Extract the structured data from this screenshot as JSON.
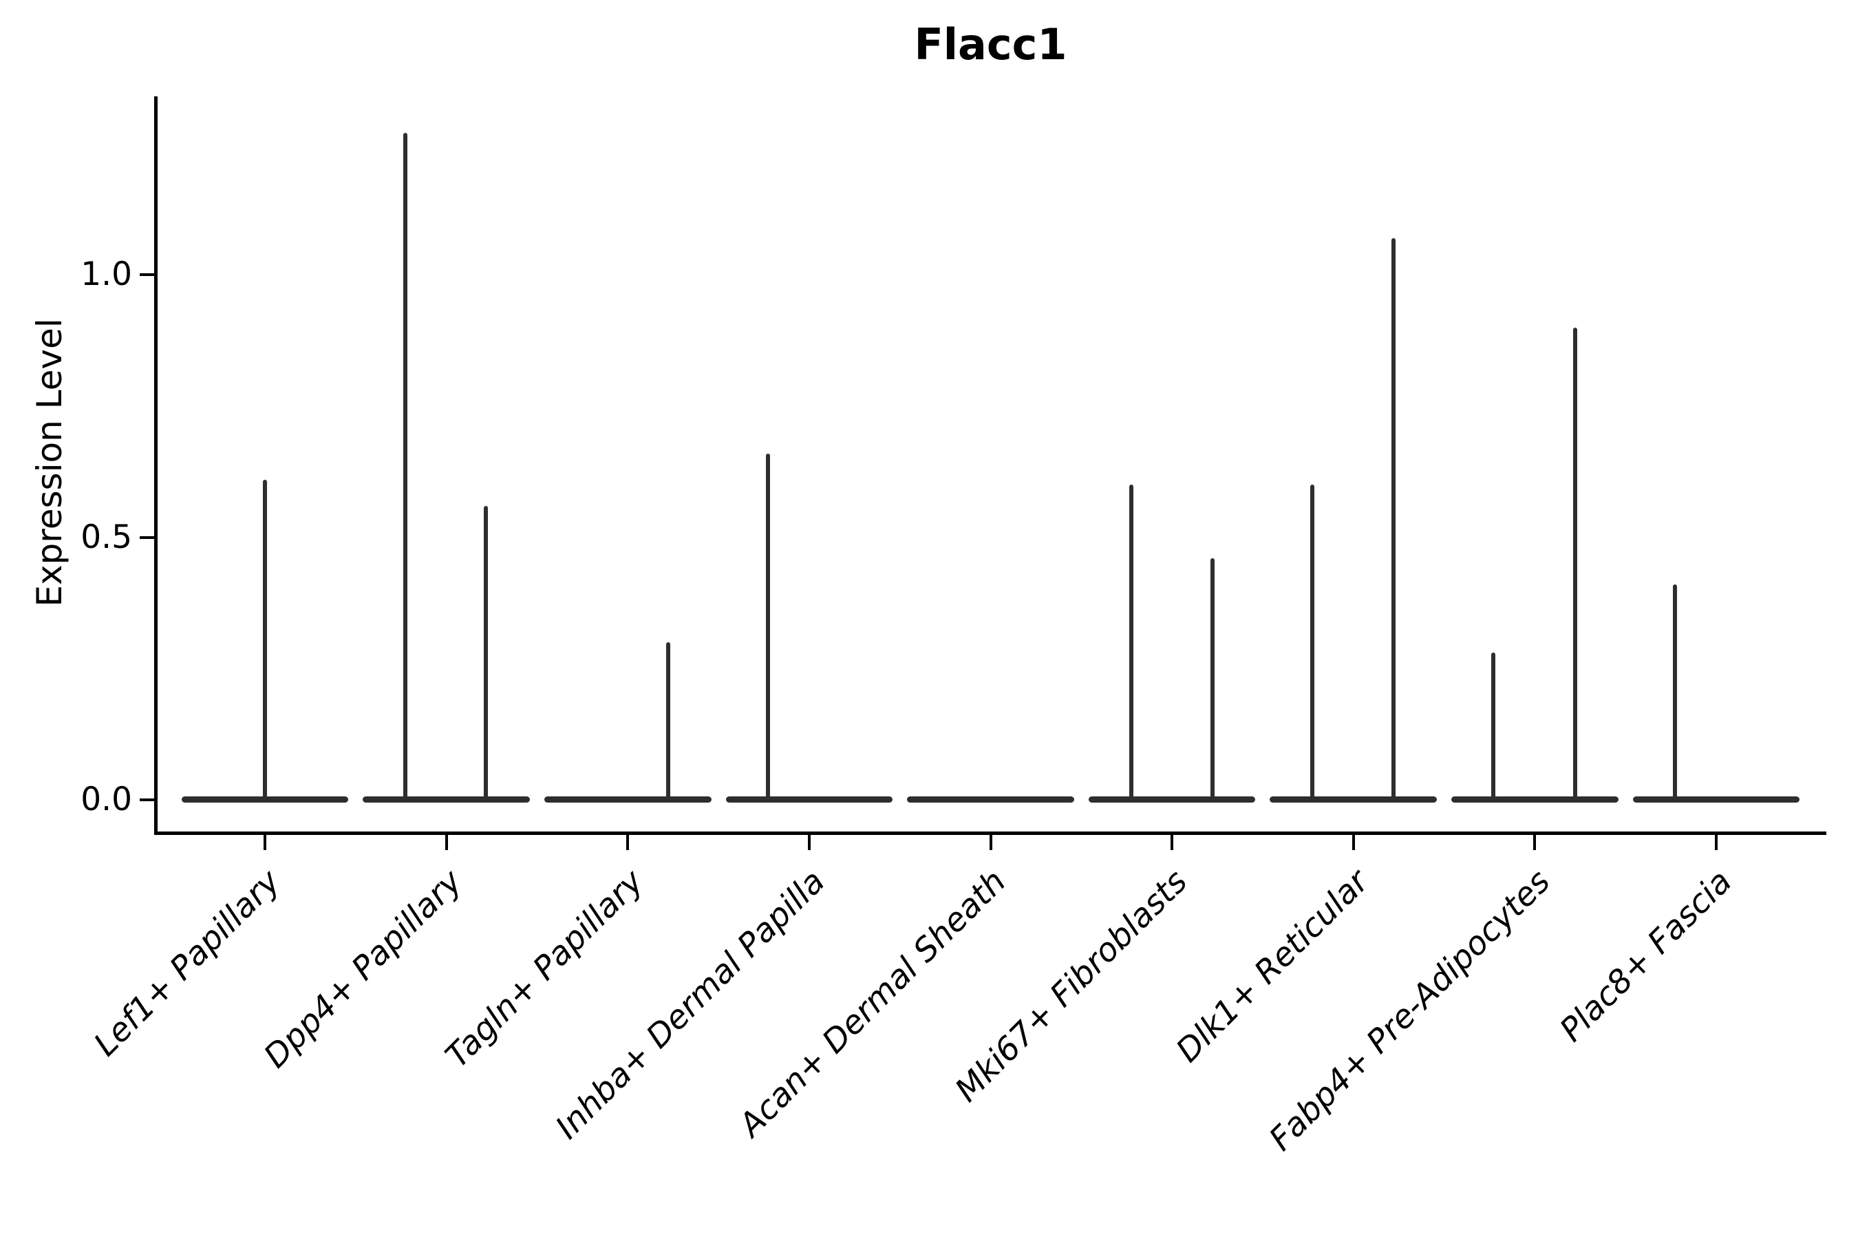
{
  "figure": {
    "title": "Flacc1"
  },
  "chart_data": {
    "type": "violin",
    "title": "Flacc1",
    "xlabel": "",
    "ylabel": "Expression Level",
    "ytick_labels": [
      "0.0",
      "0.5",
      "1.0"
    ],
    "ytick_values": [
      0.0,
      0.5,
      1.0
    ],
    "ylim": [
      -0.063,
      1.34
    ],
    "grid": false,
    "legend": false,
    "base_width_frac": 0.92,
    "categories": [
      "Lef1+ Papillary",
      "Dpp4+ Papillary",
      "Tagln+ Papillary",
      "Inhba+ Dermal Papilla",
      "Acan+ Dermal Sheath",
      "Mki67+ Fibroblasts",
      "Dlk1+ Reticular",
      "Fabp4+ Pre-Adipocytes",
      "Plac8+ Fascia"
    ],
    "violins": [
      {
        "category": "Lef1+ Papillary",
        "zero_mass": true,
        "spikes": [
          {
            "offset": 0.0,
            "max": 0.61
          }
        ]
      },
      {
        "category": "Dpp4+ Papillary",
        "zero_mass": true,
        "spikes": [
          {
            "offset": -0.228,
            "max": 1.27
          },
          {
            "offset": 0.216,
            "max": 0.56
          }
        ]
      },
      {
        "category": "Tagln+ Papillary",
        "zero_mass": true,
        "spikes": [
          {
            "offset": 0.222,
            "max": 0.3
          }
        ]
      },
      {
        "category": "Inhba+ Dermal Papilla",
        "zero_mass": true,
        "spikes": [
          {
            "offset": -0.226,
            "max": 0.66
          }
        ]
      },
      {
        "category": "Acan+ Dermal Sheath",
        "zero_mass": true,
        "spikes": []
      },
      {
        "category": "Mki67+ Fibroblasts",
        "zero_mass": true,
        "spikes": [
          {
            "offset": -0.226,
            "max": 0.6
          },
          {
            "offset": 0.223,
            "max": 0.46
          }
        ]
      },
      {
        "category": "Dlk1+ Reticular",
        "zero_mass": true,
        "spikes": [
          {
            "offset": -0.228,
            "max": 0.6
          },
          {
            "offset": 0.222,
            "max": 1.07
          }
        ]
      },
      {
        "category": "Fabp4+ Pre-Adipocytes",
        "zero_mass": true,
        "spikes": [
          {
            "offset": -0.229,
            "max": 0.28
          },
          {
            "offset": 0.222,
            "max": 0.9
          }
        ]
      },
      {
        "category": "Plac8+ Fascia",
        "zero_mass": true,
        "spikes": [
          {
            "offset": -0.228,
            "max": 0.41
          }
        ]
      }
    ],
    "colors": {
      "violin": "#2e2e2e",
      "axis": "#000000",
      "text": "#000000"
    }
  }
}
